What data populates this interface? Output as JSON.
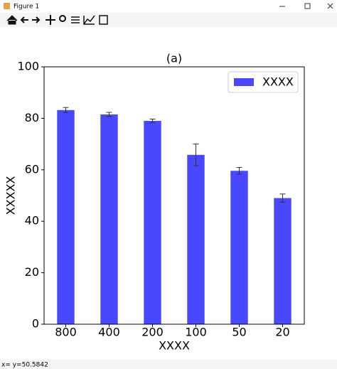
{
  "window": {
    "title": "Figure 1",
    "status": "x= y=50.5842"
  },
  "chart_data": {
    "type": "bar",
    "title": "(a)",
    "x_label": "XXXX",
    "y_label": "XXXXX",
    "categories": [
      "800",
      "400",
      "200",
      "100",
      "50",
      "20"
    ],
    "series": [
      {
        "name": "XXXX",
        "color": "#4848ff",
        "values": [
          83.2,
          81.5,
          79,
          65.8,
          59.6,
          49
        ],
        "errors": [
          1,
          0.8,
          0.7,
          4.2,
          1.3,
          1.6
        ]
      }
    ],
    "ylim": [
      0,
      100
    ],
    "yticks": [
      0,
      20,
      40,
      60,
      80,
      100
    ],
    "legend": "upper right",
    "grid": false
  }
}
